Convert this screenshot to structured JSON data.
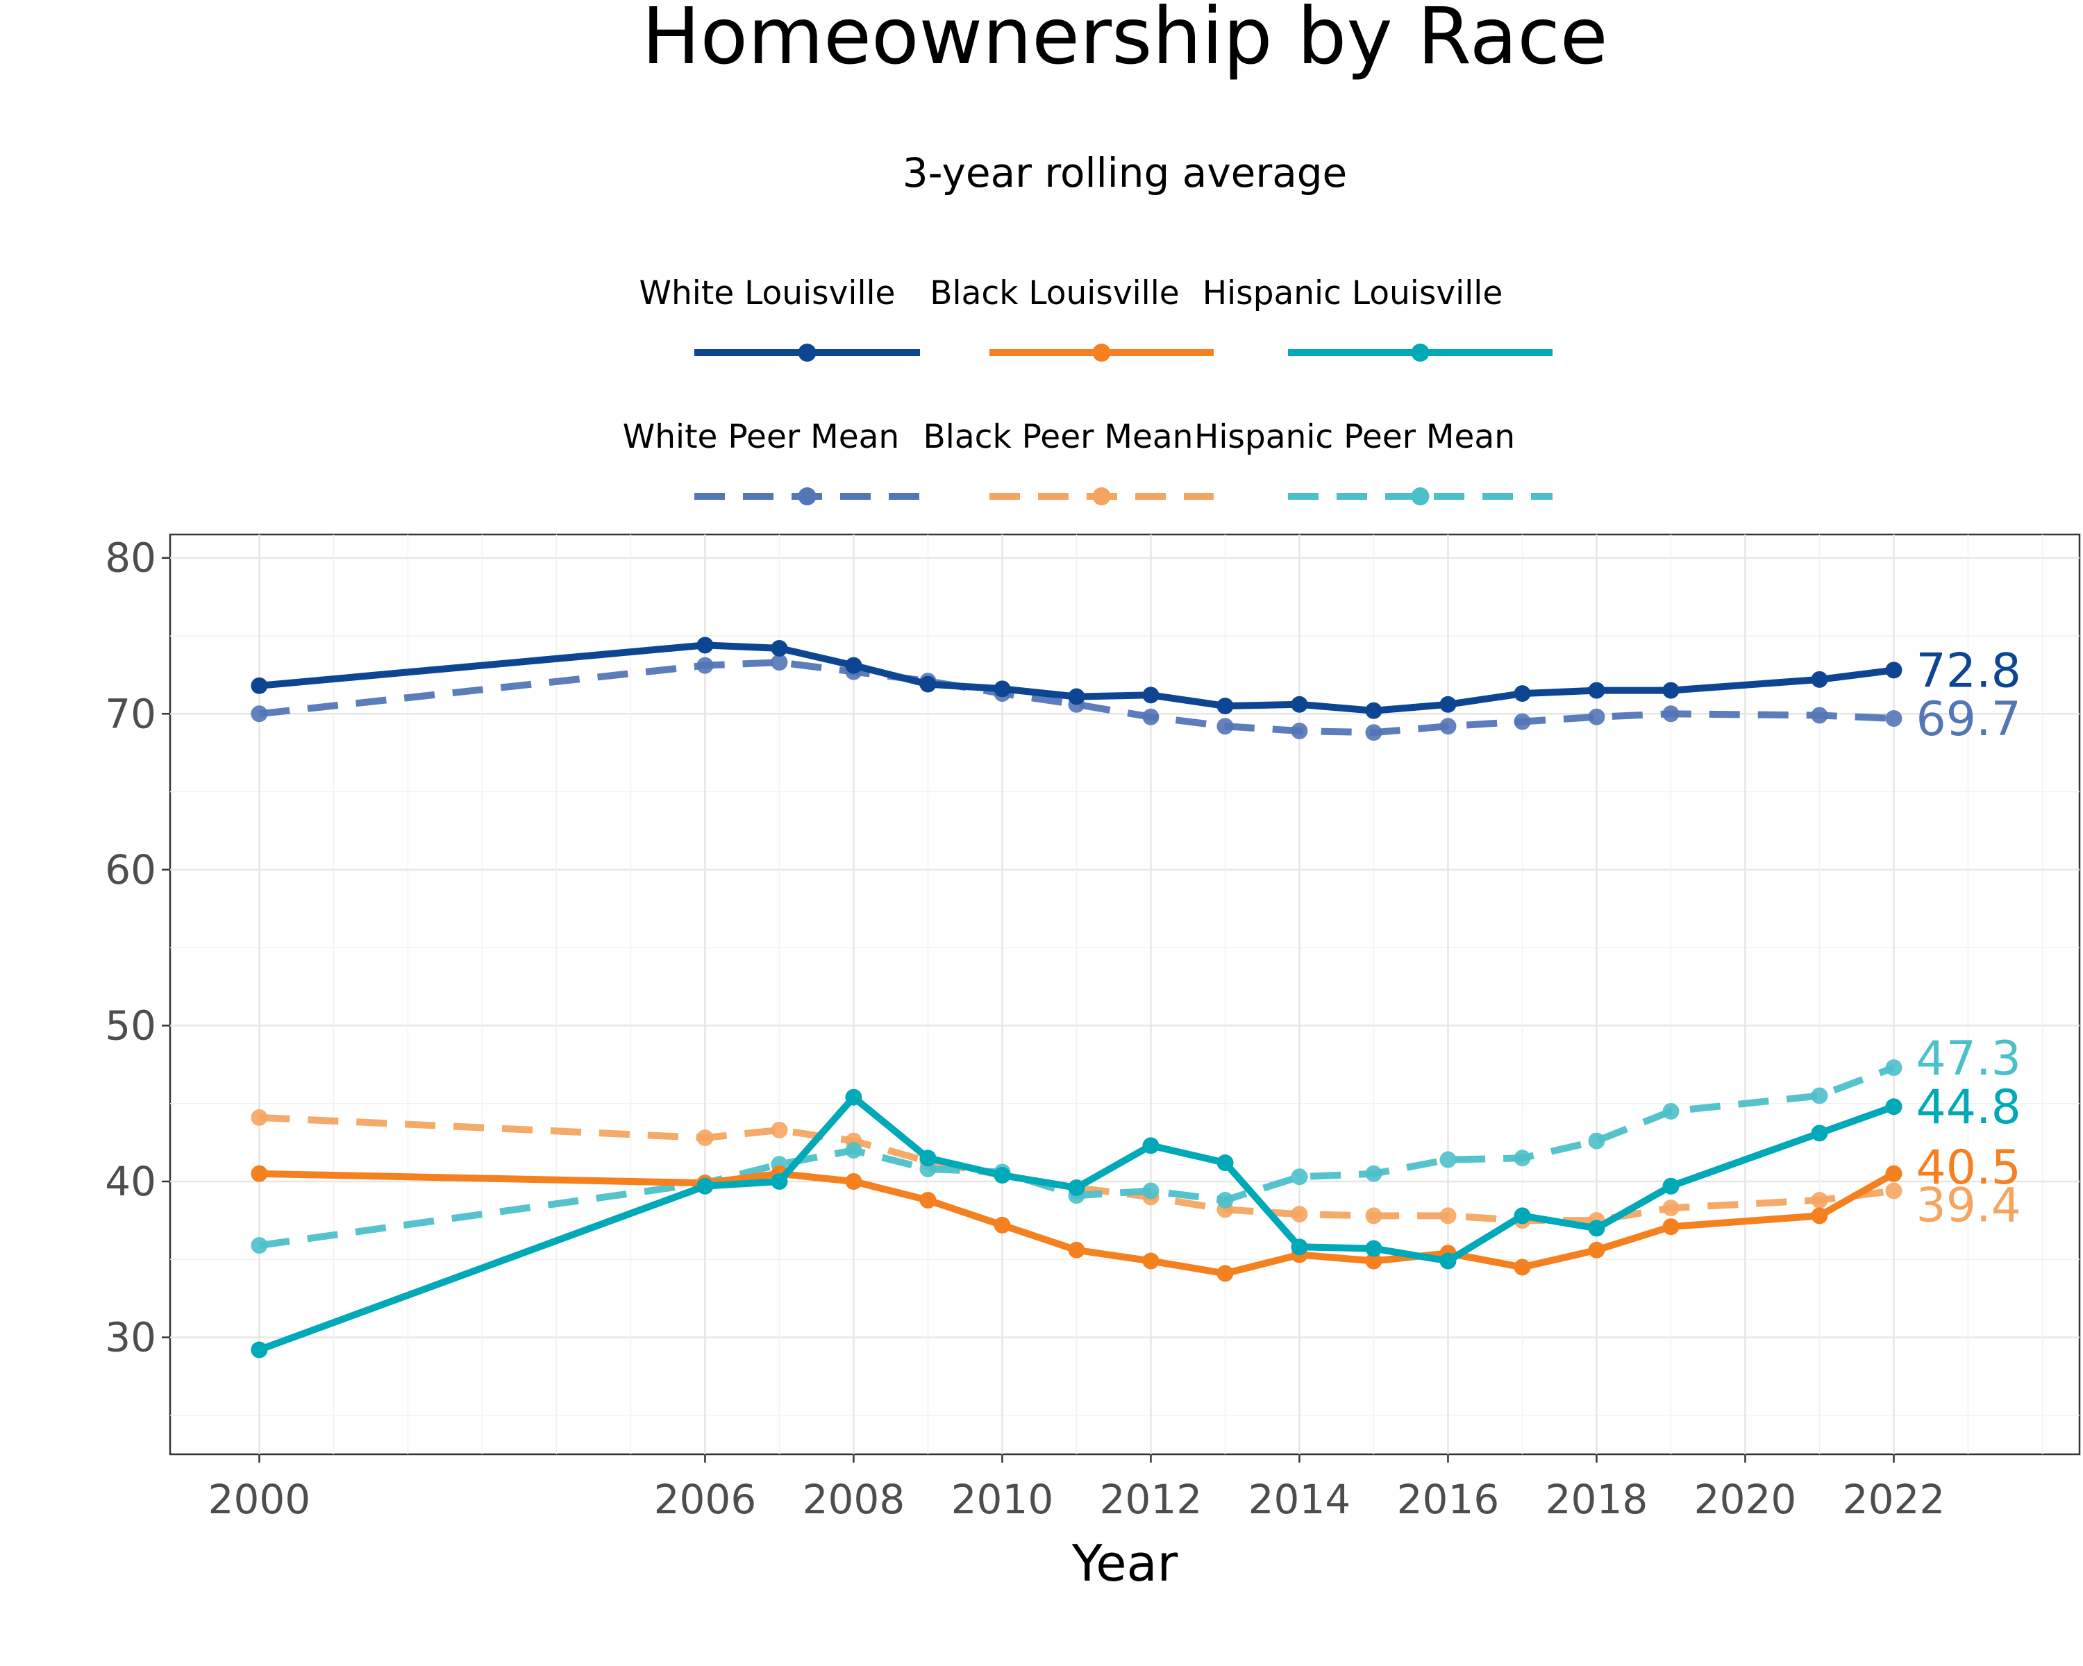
{
  "chart_data": {
    "type": "line",
    "title": "Homeownership by Race",
    "subtitle": "3-year rolling average",
    "xlabel": "Year",
    "ylabel": "",
    "xlim": [
      1998.8,
      2024.5
    ],
    "ylim": [
      22.5,
      81.5
    ],
    "x_ticks": [
      2000,
      2006,
      2008,
      2010,
      2012,
      2014,
      2016,
      2018,
      2020,
      2022
    ],
    "y_ticks": [
      30,
      40,
      50,
      60,
      70,
      80
    ],
    "grid": true,
    "legend_position": "top",
    "legend_rows": [
      [
        "White Louisville",
        "Black Louisville",
        "Hispanic Louisville"
      ],
      [
        "White Peer Mean",
        "Black Peer Mean",
        "Hispanic Peer Mean"
      ]
    ],
    "x": [
      2000,
      2006,
      2007,
      2008,
      2009,
      2010,
      2011,
      2012,
      2013,
      2014,
      2015,
      2016,
      2017,
      2018,
      2019,
      2021,
      2022
    ],
    "series": [
      {
        "name": "White Louisville",
        "color": "#0d4593",
        "dash": false,
        "values": [
          71.8,
          74.4,
          74.2,
          73.1,
          71.9,
          71.6,
          71.1,
          71.2,
          70.5,
          70.6,
          70.2,
          70.6,
          71.3,
          71.5,
          71.5,
          72.2,
          72.8
        ],
        "end_label": "72.8"
      },
      {
        "name": "Black Louisville",
        "color": "#f58020",
        "dash": false,
        "values": [
          40.5,
          39.9,
          40.5,
          40.0,
          38.8,
          37.2,
          35.6,
          34.9,
          34.1,
          35.3,
          34.9,
          35.4,
          34.5,
          35.6,
          37.1,
          37.8,
          40.5
        ],
        "end_label": "40.5"
      },
      {
        "name": "Hispanic Louisville",
        "color": "#00a9b7",
        "dash": false,
        "values": [
          29.2,
          39.7,
          40.0,
          45.4,
          41.5,
          40.4,
          39.6,
          42.3,
          41.2,
          35.8,
          35.7,
          34.9,
          37.8,
          37.0,
          39.7,
          43.1,
          44.8
        ],
        "end_label": "44.8"
      },
      {
        "name": "White Peer Mean",
        "color": "#5376b7",
        "dash": true,
        "values": [
          70.0,
          73.1,
          73.3,
          72.7,
          72.1,
          71.3,
          70.6,
          69.8,
          69.2,
          68.9,
          68.8,
          69.2,
          69.5,
          69.8,
          70.0,
          69.9,
          69.7
        ],
        "end_label": "69.7"
      },
      {
        "name": "Black Peer Mean",
        "color": "#f6a561",
        "dash": true,
        "values": [
          44.1,
          42.8,
          43.3,
          42.6,
          41.3,
          40.4,
          39.6,
          39.0,
          38.2,
          37.9,
          37.8,
          37.8,
          37.5,
          37.5,
          38.3,
          38.8,
          39.4
        ],
        "end_label": "39.4"
      },
      {
        "name": "Hispanic Peer Mean",
        "color": "#4cc0c9",
        "dash": true,
        "values": [
          35.9,
          39.9,
          41.1,
          42.0,
          40.8,
          40.6,
          39.1,
          39.4,
          38.8,
          40.3,
          40.5,
          41.4,
          41.5,
          42.6,
          44.5,
          45.5,
          47.3
        ],
        "end_label": "47.3"
      }
    ]
  }
}
